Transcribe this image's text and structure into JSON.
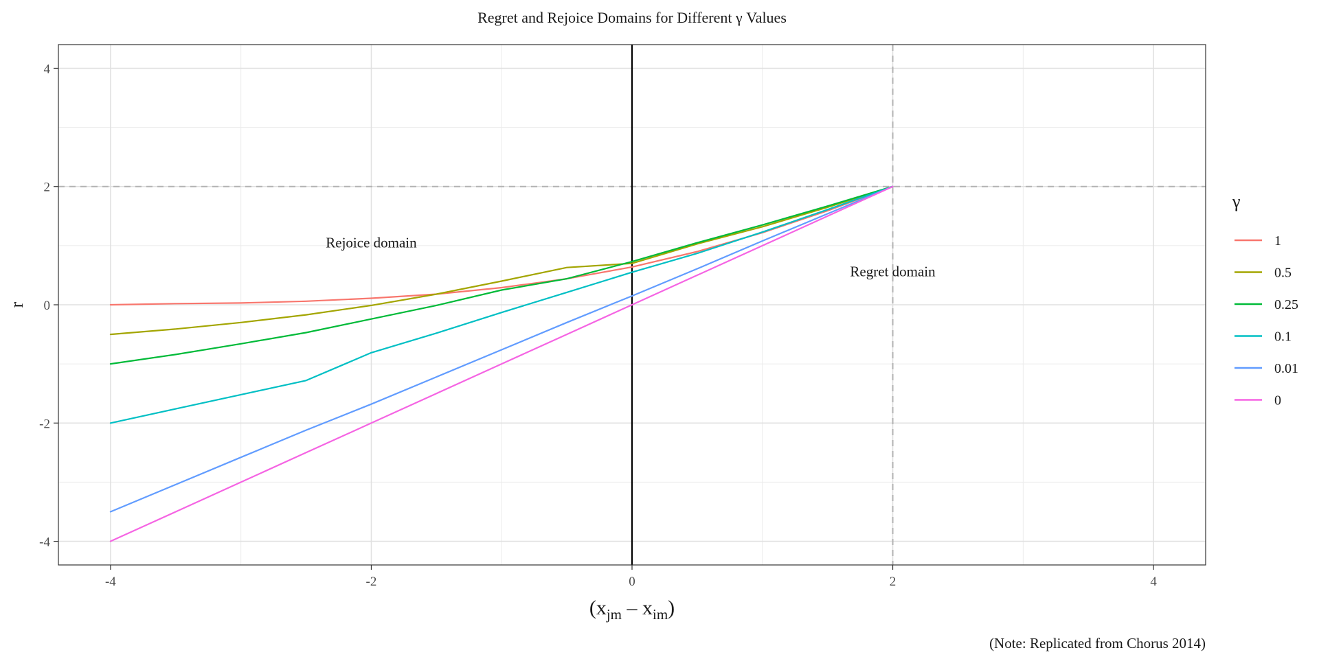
{
  "chart_data": {
    "type": "line",
    "title": "Regret and Rejoice Domains for Different γ Values",
    "ylabel": "r",
    "xlabel": {
      "main": "x",
      "sub1": "jm",
      "minus": "–",
      "sub2": "im"
    },
    "caption": "(Note: Replicated from Chorus 2014)",
    "xlim": [
      -4.4,
      4.4
    ],
    "ylim": [
      -4.4,
      4.4
    ],
    "xticks": [
      -4,
      -2,
      0,
      2,
      4
    ],
    "yticks": [
      -4,
      -2,
      0,
      2,
      4
    ],
    "xtick_labels": [
      "-4",
      "-2",
      "0",
      "2",
      "4"
    ],
    "ytick_labels": [
      "-4",
      "-2",
      "0",
      "2",
      "4"
    ],
    "grid": true,
    "legend_position": "right",
    "legend_title": "γ",
    "reference_lines": {
      "vertical_solid_x": 0,
      "vertical_dashed_x": 2,
      "horizontal_dashed_y": 2
    },
    "annotations": [
      {
        "text": "Rejoice domain",
        "x": -2.0,
        "y": 0.97
      },
      {
        "text": "Regret domain",
        "x": 2.0,
        "y": 0.48
      }
    ],
    "x": [
      -4.0,
      -3.5,
      -3.0,
      -2.5,
      -2.0,
      -1.5,
      -1.0,
      -0.5,
      0.0,
      0.5,
      1.0,
      1.5,
      2.0
    ],
    "series": [
      {
        "name": "1",
        "color": "#F8766D",
        "values": [
          0.0,
          0.02,
          0.03,
          0.06,
          0.11,
          0.18,
          0.29,
          0.44,
          0.64,
          0.9,
          1.22,
          1.59,
          2.0
        ]
      },
      {
        "name": "0.5",
        "color": "#A3A500",
        "values": [
          -0.5,
          -0.41,
          -0.3,
          -0.17,
          -0.01,
          0.18,
          0.4,
          0.63,
          0.7,
          1.03,
          1.32,
          1.65,
          2.0
        ]
      },
      {
        "name": "0.25",
        "color": "#00BA38",
        "values": [
          -1.0,
          -0.84,
          -0.66,
          -0.47,
          -0.24,
          -0.01,
          0.25,
          0.44,
          0.73,
          1.05,
          1.35,
          1.67,
          2.0
        ]
      },
      {
        "name": "0.1",
        "color": "#00BFC4",
        "values": [
          -2.0,
          -1.76,
          -1.52,
          -1.28,
          -0.81,
          -0.48,
          -0.13,
          0.21,
          0.55,
          0.87,
          1.23,
          1.61,
          2.0
        ]
      },
      {
        "name": "0.01",
        "color": "#619CFF",
        "values": [
          -3.5,
          -3.04,
          -2.58,
          -2.12,
          -1.68,
          -1.22,
          -0.76,
          -0.3,
          0.15,
          0.61,
          1.08,
          1.54,
          2.0
        ]
      },
      {
        "name": "0",
        "color": "#F564E3",
        "values": [
          -4.0,
          -3.5,
          -3.0,
          -2.5,
          -2.0,
          -1.5,
          -1.0,
          -0.5,
          0.0,
          0.5,
          1.0,
          1.5,
          2.0
        ]
      }
    ]
  }
}
